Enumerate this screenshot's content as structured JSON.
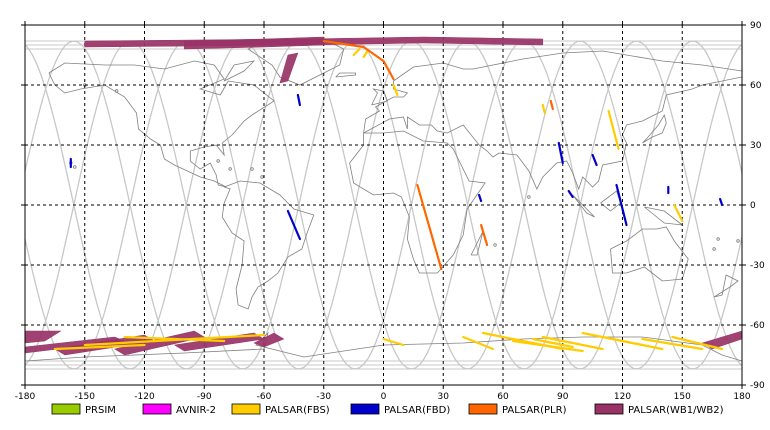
{
  "chart_data": {
    "type": "map",
    "projection": "equirectangular",
    "xlim": [
      -180,
      180
    ],
    "ylim": [
      -90,
      90
    ],
    "x_ticks": [
      -180,
      -150,
      -120,
      -90,
      -60,
      -30,
      0,
      30,
      60,
      90,
      120,
      150,
      180
    ],
    "y_ticks": [
      90,
      60,
      30,
      0,
      -30,
      -60,
      -90
    ],
    "grid": "dashed",
    "legend_position": "bottom",
    "legend": [
      {
        "label": "PRSIM",
        "color": "#99cc00"
      },
      {
        "label": "AVNIR-2",
        "color": "#ff00ff"
      },
      {
        "label": "PALSAR(FBS)",
        "color": "#ffcc00"
      },
      {
        "label": "PALSAR(FBD)",
        "color": "#0000cc"
      },
      {
        "label": "PALSAR(PLR)",
        "color": "#ff6600"
      },
      {
        "label": "PALSAR(WB1/WB2)",
        "color": "#993366"
      }
    ],
    "colors": {
      "orbit": "#c8c8c8",
      "coast": "#808080",
      "grid": "#000000"
    },
    "swaths": {
      "PALSAR(WB1/WB2)": [
        [
          [
            -150,
            82
          ],
          [
            -40,
            83
          ],
          [
            20,
            84
          ],
          [
            80,
            83
          ],
          [
            80,
            80
          ],
          [
            20,
            81
          ],
          [
            -40,
            80
          ],
          [
            -150,
            79
          ]
        ],
        [
          [
            -100,
            82
          ],
          [
            -60,
            83
          ],
          [
            -30,
            84
          ],
          [
            -30,
            80
          ],
          [
            -60,
            79
          ],
          [
            -100,
            78
          ]
        ],
        [
          [
            -48,
            75
          ],
          [
            -43,
            76
          ],
          [
            -48,
            62
          ],
          [
            -52,
            61
          ]
        ],
        [
          [
            -180,
            -63
          ],
          [
            -162,
            -63
          ],
          [
            -170,
            -68
          ],
          [
            -180,
            -69
          ]
        ],
        [
          [
            -180,
            -71
          ],
          [
            -135,
            -66
          ],
          [
            -130,
            -68
          ],
          [
            -180,
            -74
          ]
        ],
        [
          [
            -165,
            -72
          ],
          [
            -120,
            -65
          ],
          [
            -115,
            -68
          ],
          [
            -160,
            -75
          ]
        ],
        [
          [
            -135,
            -72
          ],
          [
            -95,
            -63
          ],
          [
            -90,
            -66
          ],
          [
            -130,
            -75
          ]
        ],
        [
          [
            -105,
            -70
          ],
          [
            -65,
            -64
          ],
          [
            -60,
            -67
          ],
          [
            -100,
            -73
          ]
        ],
        [
          [
            -65,
            -69
          ],
          [
            -55,
            -64
          ],
          [
            -50,
            -67
          ],
          [
            -60,
            -71
          ]
        ],
        [
          [
            160,
            -69
          ],
          [
            180,
            -63
          ],
          [
            180,
            -67
          ],
          [
            165,
            -72
          ]
        ]
      ]
    },
    "tracks": {
      "PALSAR(FBS)": [
        [
          [
            -150,
            -70
          ],
          [
            -60,
            -65
          ]
        ],
        [
          [
            -130,
            -66
          ],
          [
            -80,
            -68
          ]
        ],
        [
          [
            -165,
            -72
          ],
          [
            -120,
            -70
          ]
        ],
        [
          [
            -15,
            75
          ],
          [
            -12,
            78
          ]
        ],
        [
          [
            -10,
            74
          ],
          [
            -8,
            77
          ]
        ],
        [
          [
            0,
            -67
          ],
          [
            10,
            -70
          ]
        ],
        [
          [
            40,
            -66
          ],
          [
            55,
            -72
          ]
        ],
        [
          [
            50,
            -64
          ],
          [
            90,
            -72
          ]
        ],
        [
          [
            65,
            -68
          ],
          [
            100,
            -73
          ]
        ],
        [
          [
            80,
            -66
          ],
          [
            110,
            -72
          ]
        ],
        [
          [
            100,
            -64
          ],
          [
            130,
            -70
          ]
        ],
        [
          [
            110,
            -66
          ],
          [
            140,
            -72
          ]
        ],
        [
          [
            130,
            -67
          ],
          [
            160,
            -72
          ]
        ],
        [
          [
            145,
            -66
          ],
          [
            170,
            -72
          ]
        ],
        [
          [
            75,
            -67
          ],
          [
            95,
            -71
          ]
        ],
        [
          [
            113,
            47
          ],
          [
            118,
            28
          ]
        ],
        [
          [
            146,
            0
          ],
          [
            150,
            -8
          ]
        ],
        [
          [
            80,
            50
          ],
          [
            81,
            46
          ]
        ],
        [
          [
            5,
            60
          ],
          [
            7,
            55
          ]
        ]
      ],
      "PALSAR(FBD)": [
        [
          [
            -157,
            23
          ],
          [
            -157,
            19
          ]
        ],
        [
          [
            -48,
            -3
          ],
          [
            -42,
            -17
          ]
        ],
        [
          [
            -43,
            55
          ],
          [
            -42,
            50
          ]
        ],
        [
          [
            88,
            31
          ],
          [
            90,
            21
          ]
        ],
        [
          [
            93,
            7
          ],
          [
            95,
            4
          ]
        ],
        [
          [
            117,
            10
          ],
          [
            122,
            -10
          ]
        ],
        [
          [
            105,
            25
          ],
          [
            107,
            20
          ]
        ],
        [
          [
            143,
            9
          ],
          [
            143,
            6
          ]
        ],
        [
          [
            169,
            3
          ],
          [
            170,
            0
          ]
        ],
        [
          [
            48,
            5
          ],
          [
            49,
            2
          ]
        ]
      ],
      "PALSAR(PLR)": [
        [
          [
            -30,
            82
          ],
          [
            -10,
            79
          ],
          [
            0,
            72
          ],
          [
            5,
            63
          ]
        ],
        [
          [
            17,
            10
          ],
          [
            29,
            -32
          ]
        ],
        [
          [
            49,
            -10
          ],
          [
            52,
            -20
          ]
        ],
        [
          [
            84,
            52
          ],
          [
            85,
            48
          ]
        ]
      ]
    }
  }
}
